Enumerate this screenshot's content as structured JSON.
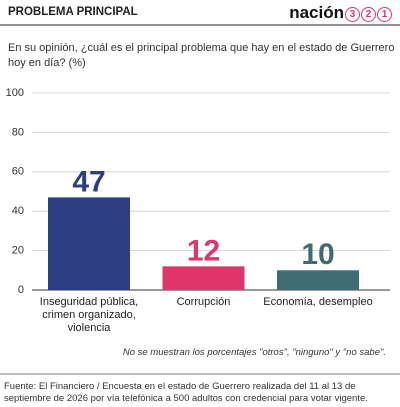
{
  "header": {
    "section": "PROBLEMA PRINCIPAL",
    "logo": {
      "text": "nación",
      "digits": [
        "3",
        "2",
        "1"
      ]
    }
  },
  "chart_data": {
    "type": "bar",
    "title_lines": [
      "En su opinión, ¿cuál es el principal problema que hay en el estado de Guerrero",
      "hoy en día? (%)"
    ],
    "categories": [
      "Inseguridad pública, crimen organizado, violencia",
      "Corrupción",
      "Economía, desempleo"
    ],
    "values": [
      47,
      12,
      10
    ],
    "colors": [
      "#2d3f80",
      "#e0356a",
      "#3e6c70"
    ],
    "ylim": [
      0,
      100
    ],
    "yticks": [
      0,
      20,
      40,
      60,
      80,
      100
    ],
    "grid": true,
    "note": "No se muestran los porcentajes \"otros\", \"ninguno\" y \"no sabe\"."
  },
  "footer": {
    "source": "Fuente: El Financiero / Encuesta en el estado de Guerrero realizada del 11 al 13 de septiembre de 2026 por vía telefónica a 500 adultos con credencial para votar vigente."
  }
}
